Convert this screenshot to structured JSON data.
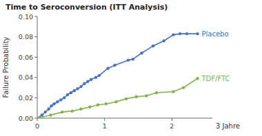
{
  "chart_data": {
    "type": "line",
    "title": "Time to Seroconversion (ITT Analysis)",
    "y_label": "Failure Probability",
    "annotations": [
      "3 Jahre"
    ],
    "xlim": [
      0,
      2.6
    ],
    "ylim": [
      0,
      0.1
    ],
    "xticks": [
      0,
      1,
      2
    ],
    "yticks": [
      {
        "value": 0,
        "label": "0.00"
      },
      0.02,
      0.04,
      0.06,
      0.08,
      {
        "value": 0.1,
        "label": "0.10"
      }
    ],
    "grid": false,
    "marker": "circle",
    "series": [
      {
        "name": "Placebo",
        "color": "#4472C4",
        "x": [
          0.0,
          0.07,
          0.12,
          0.17,
          0.21,
          0.25,
          0.3,
          0.35,
          0.4,
          0.45,
          0.5,
          0.55,
          0.6,
          0.65,
          0.7,
          0.75,
          0.8,
          0.87,
          0.92,
          1.05,
          1.15,
          1.35,
          1.42,
          1.55,
          1.72,
          1.88,
          2.02,
          2.12,
          2.22,
          2.38
        ],
        "values": [
          0.0,
          0.003,
          0.006,
          0.009,
          0.012,
          0.014,
          0.016,
          0.018,
          0.02,
          0.023,
          0.025,
          0.027,
          0.029,
          0.031,
          0.034,
          0.036,
          0.038,
          0.04,
          0.042,
          0.049,
          0.052,
          0.057,
          0.058,
          0.064,
          0.071,
          0.076,
          0.082,
          0.083,
          0.083,
          0.083
        ]
      },
      {
        "name": "TDF/FTC",
        "color": "#7AB648",
        "x": [
          0.0,
          0.2,
          0.37,
          0.52,
          0.65,
          0.78,
          0.9,
          1.02,
          1.17,
          1.32,
          1.47,
          1.62,
          1.77,
          2.02,
          2.17,
          2.38
        ],
        "values": [
          0.0,
          0.003,
          0.006,
          0.007,
          0.009,
          0.011,
          0.013,
          0.014,
          0.016,
          0.019,
          0.021,
          0.022,
          0.025,
          0.026,
          0.03,
          0.039
        ]
      }
    ]
  }
}
